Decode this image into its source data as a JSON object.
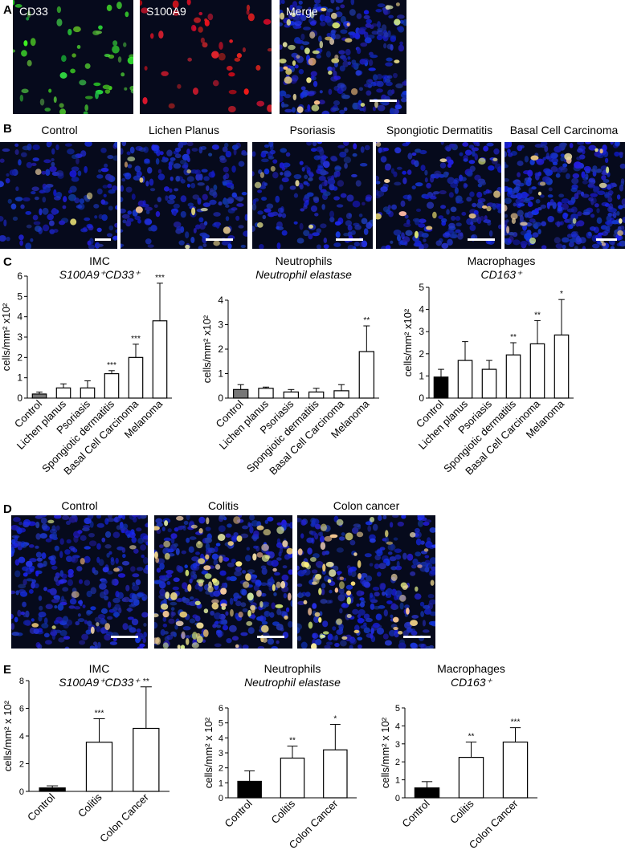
{
  "panels": {
    "a": "A",
    "b": "B",
    "c": "C",
    "d": "D",
    "e": "E"
  },
  "panel_a": {
    "images": [
      {
        "label": "CD33",
        "color": "green"
      },
      {
        "label": "S100A9",
        "color": "red"
      },
      {
        "label": "Merge",
        "color": "merge"
      }
    ]
  },
  "panel_b": {
    "images": [
      "Control",
      "Lichen Planus",
      "Psoriasis",
      "Spongiotic Dermatitis",
      "Basal Cell Carcinoma"
    ]
  },
  "panel_d": {
    "images": [
      "Control",
      "Colitis",
      "Colon cancer"
    ]
  },
  "colors": {
    "control_gray": "#777777",
    "control_black": "#000000",
    "bar_white": "#ffffff"
  },
  "chart_data": [
    {
      "id": "C1",
      "type": "bar",
      "title": "IMC",
      "subtitle": "S100A9⁺CD33⁺",
      "ylabel": "cells/mm² x10²",
      "categories": [
        "Control",
        "Lichen planus",
        "Psoriasis",
        "Spongiotic dermatitis",
        "Basal Cell Carcinoma",
        "Melanoma"
      ],
      "values": [
        0.2,
        0.5,
        0.5,
        1.2,
        2.0,
        3.8
      ],
      "errors": [
        0.1,
        0.2,
        0.35,
        0.15,
        0.65,
        1.85
      ],
      "significance": [
        "",
        "",
        "",
        "***",
        "***",
        "***"
      ],
      "ylim": [
        0,
        6
      ],
      "yticks": [
        0,
        1,
        2,
        3,
        4,
        5,
        6
      ],
      "control_fill": "#777777"
    },
    {
      "id": "C2",
      "type": "bar",
      "title": "Neutrophils",
      "subtitle": "Neutrophil elastase",
      "ylabel": "cells/mm² x10²",
      "categories": [
        "Control",
        "Lichen planus",
        "Psoriasis",
        "Spongiotic dermatitis",
        "Basal Cell Carcinoma",
        "Melanoma"
      ],
      "values": [
        0.35,
        0.4,
        0.25,
        0.25,
        0.3,
        1.9
      ],
      "errors": [
        0.2,
        0.05,
        0.1,
        0.15,
        0.25,
        1.05
      ],
      "significance": [
        "",
        "",
        "",
        "",
        "",
        "**"
      ],
      "ylim": [
        0,
        4
      ],
      "yticks": [
        0,
        1,
        2,
        3,
        4
      ],
      "control_fill": "#777777"
    },
    {
      "id": "C3",
      "type": "bar",
      "title": "Macrophages",
      "subtitle": "CD163⁺",
      "ylabel": "cells/mm² x10²",
      "categories": [
        "Control",
        "Lichen planus",
        "Psoriasis",
        "Spongiotic dermatitis",
        "Basal Cell Carcinoma",
        "Melanoma"
      ],
      "values": [
        0.95,
        1.7,
        1.3,
        1.95,
        2.45,
        2.85
      ],
      "errors": [
        0.35,
        0.85,
        0.4,
        0.55,
        1.05,
        1.6
      ],
      "significance": [
        "",
        "",
        "",
        "**",
        "**",
        "*"
      ],
      "ylim": [
        0,
        5
      ],
      "yticks": [
        0,
        1,
        2,
        3,
        4,
        5
      ],
      "control_fill": "#000000"
    },
    {
      "id": "E1",
      "type": "bar",
      "title": "IMC",
      "subtitle": "S100A9⁺CD33⁺",
      "ylabel": "cells/mm² x 10²",
      "categories": [
        "Control",
        "Colitis",
        "Colon Cancer"
      ],
      "values": [
        0.25,
        3.55,
        4.55
      ],
      "errors": [
        0.15,
        1.7,
        3.0
      ],
      "significance": [
        "",
        "***",
        "**"
      ],
      "ylim": [
        0,
        8
      ],
      "yticks": [
        0,
        2,
        4,
        6,
        8
      ],
      "control_fill": "#000000"
    },
    {
      "id": "E2",
      "type": "bar",
      "title": "Neutrophils",
      "subtitle": "Neutrophil elastase",
      "ylabel": "cells/mm² x 10²",
      "categories": [
        "Control",
        "Colitis",
        "Colon Cancer"
      ],
      "values": [
        1.1,
        2.65,
        3.2
      ],
      "errors": [
        0.7,
        0.8,
        1.7
      ],
      "significance": [
        "",
        "**",
        "*"
      ],
      "ylim": [
        0,
        6
      ],
      "yticks": [
        0,
        1,
        2,
        3,
        4,
        5,
        6
      ],
      "control_fill": "#000000"
    },
    {
      "id": "E3",
      "type": "bar",
      "title": "Macrophages",
      "subtitle": "CD163⁺",
      "ylabel": "cells/mm² x 10²",
      "categories": [
        "Control",
        "Colitis",
        "Colon Cancer"
      ],
      "values": [
        0.55,
        2.25,
        3.1
      ],
      "errors": [
        0.35,
        0.85,
        0.8
      ],
      "significance": [
        "",
        "**",
        "***"
      ],
      "ylim": [
        0,
        5
      ],
      "yticks": [
        0,
        1,
        2,
        3,
        4,
        5
      ],
      "control_fill": "#000000"
    }
  ]
}
